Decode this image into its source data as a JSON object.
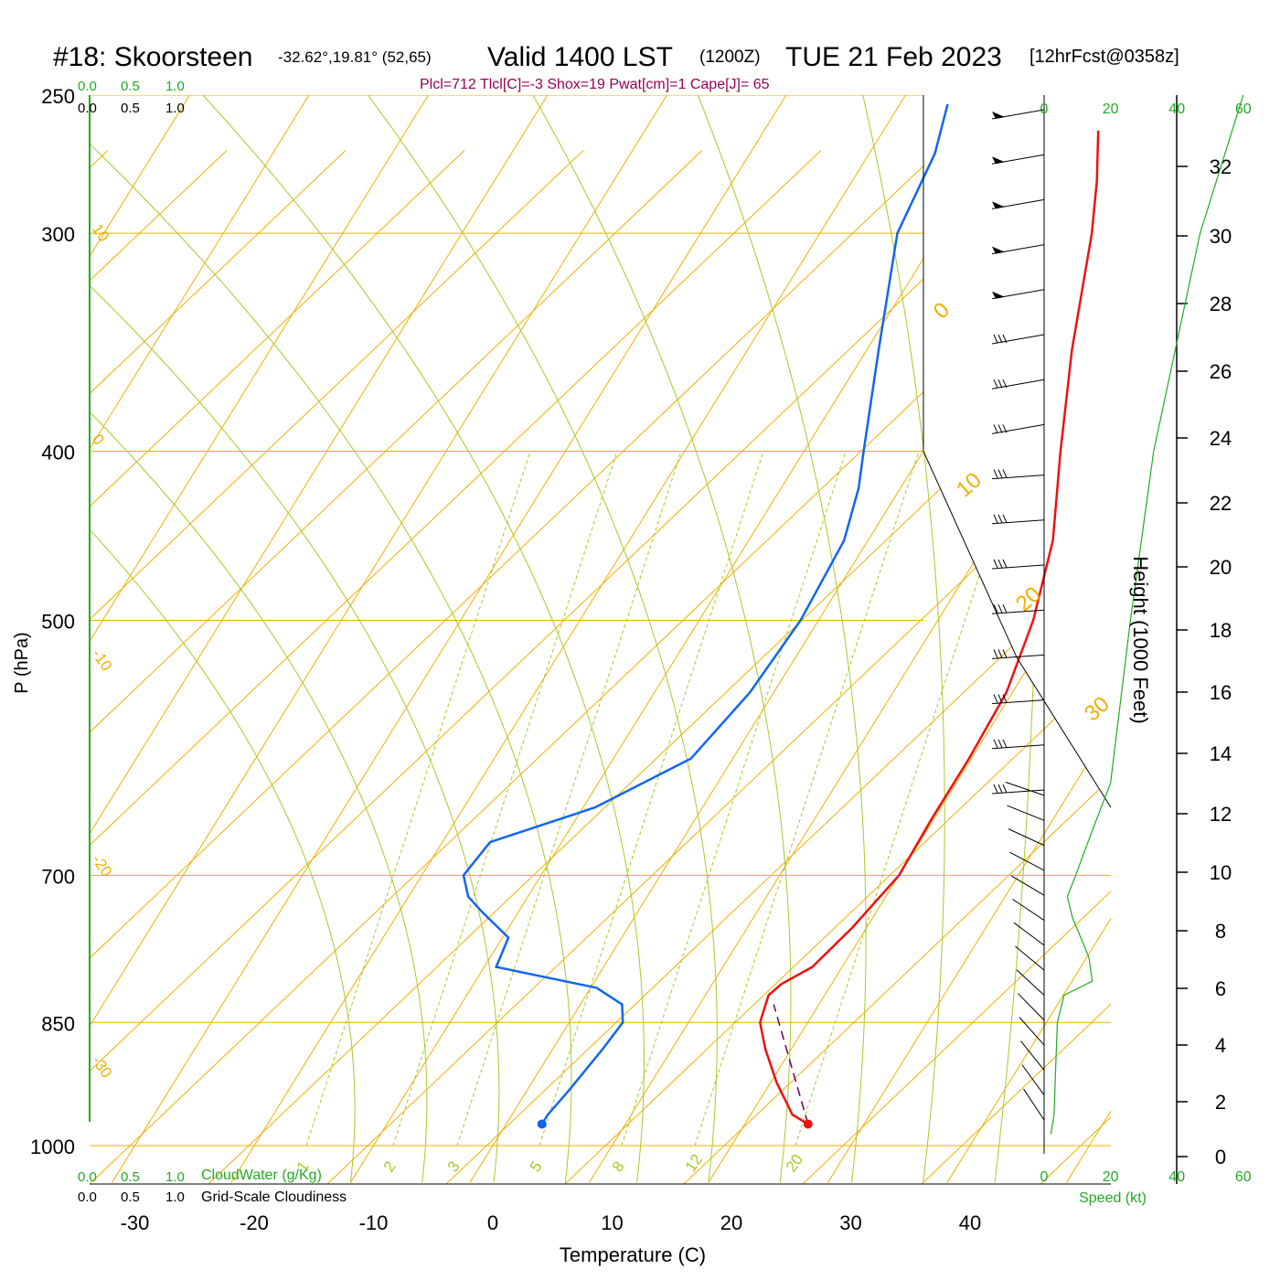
{
  "header": {
    "station": "#18: Skoorsteen",
    "coords": "-32.62°,19.81° (52,65)",
    "valid": "Valid 1400 LST",
    "zulu": "(1200Z)",
    "date": "TUE 21 Feb 2023",
    "fcst": "[12hrFcst@0358z]",
    "indices": "Plcl=712 Tlcl[C]=-3 Shox=19 Pwat[cm]=1 Cape[J]= 65"
  },
  "cloud_scale": {
    "cloudwater_ticks": [
      "0.0",
      "0.5",
      "1.0"
    ],
    "cloudwater_label": "CloudWater (g/Kg)",
    "cloudiness_ticks": [
      "0.0",
      "0.5",
      "1.0"
    ],
    "cloudiness_label": "Grid-Scale Cloudiness"
  },
  "colors": {
    "temperature": "#ee1111",
    "dewpoint": "#1166ee",
    "isobar_isotherm": "#f0b000",
    "dry_adiabat": "#a8c828",
    "mixing_ratio": "#a8c828",
    "parcel": "#660066",
    "wind_speed": "#22aa22",
    "indices": "#990055"
  },
  "chart_data": {
    "type": "line",
    "title": "",
    "xlabel": "Temperature (C)",
    "ylabel": "P (hPa)",
    "xlim": [
      -30,
      40
    ],
    "pressure_range": [
      1000,
      250
    ],
    "y_scale": "log",
    "x_ticks": [
      "-30",
      "-20",
      "-10",
      "0",
      "10",
      "20",
      "30",
      "40"
    ],
    "pressure_levels": [
      250,
      300,
      400,
      500,
      700,
      850,
      1000
    ],
    "pressure_ticks": [
      "250",
      "300",
      "400",
      "500",
      "700",
      "850",
      "1000"
    ],
    "isotherm_labels": [
      "10",
      "0",
      "-10",
      "-20",
      "-30"
    ],
    "isotherm_label_values": [
      10,
      0,
      -10,
      -20,
      -30
    ],
    "isotherm_labels_right": [
      "0",
      "10",
      "20",
      "30"
    ],
    "mixing_ratio_labels": [
      "1",
      "2",
      "3",
      "5",
      "8",
      "12",
      "20"
    ],
    "mixing_ratio_values": [
      1,
      2,
      3,
      5,
      8,
      12,
      20
    ],
    "series": [
      {
        "name": "Temperature",
        "points": [
          {
            "p": 972,
            "t": 25.3
          },
          {
            "p": 960,
            "t": 23.5
          },
          {
            "p": 920,
            "t": 20.5
          },
          {
            "p": 880,
            "t": 17.8
          },
          {
            "p": 850,
            "t": 16.0
          },
          {
            "p": 820,
            "t": 15.3
          },
          {
            "p": 808,
            "t": 15.8
          },
          {
            "p": 790,
            "t": 17.5
          },
          {
            "p": 750,
            "t": 18.8
          },
          {
            "p": 700,
            "t": 20.0
          },
          {
            "p": 650,
            "t": 19.8
          },
          {
            "p": 600,
            "t": 19.8
          },
          {
            "p": 550,
            "t": 19.5
          },
          {
            "p": 500,
            "t": 18.0
          },
          {
            "p": 450,
            "t": 15.5
          },
          {
            "p": 400,
            "t": 11.5
          },
          {
            "p": 350,
            "t": 7.2
          },
          {
            "p": 300,
            "t": 2.8
          },
          {
            "p": 280,
            "t": 0.5
          },
          {
            "p": 262,
            "t": -2.0
          }
        ]
      },
      {
        "name": "Dewpoint",
        "points": [
          {
            "p": 972,
            "t": 3.0
          },
          {
            "p": 960,
            "t": 3.0
          },
          {
            "p": 930,
            "t": 3.5
          },
          {
            "p": 880,
            "t": 4.2
          },
          {
            "p": 850,
            "t": 4.5
          },
          {
            "p": 830,
            "t": 3.5
          },
          {
            "p": 812,
            "t": 0.5
          },
          {
            "p": 790,
            "t": -9.0
          },
          {
            "p": 760,
            "t": -9.5
          },
          {
            "p": 735,
            "t": -13.0
          },
          {
            "p": 720,
            "t": -15.0
          },
          {
            "p": 700,
            "t": -16.5
          },
          {
            "p": 670,
            "t": -16.0
          },
          {
            "p": 640,
            "t": -9.0
          },
          {
            "p": 600,
            "t": -3.5
          },
          {
            "p": 550,
            "t": -2.0
          },
          {
            "p": 500,
            "t": -1.5
          },
          {
            "p": 450,
            "t": -2.0
          },
          {
            "p": 420,
            "t": -3.5
          },
          {
            "p": 400,
            "t": -5.0
          },
          {
            "p": 350,
            "t": -9.0
          },
          {
            "p": 300,
            "t": -13.5
          },
          {
            "p": 270,
            "t": -14.5
          },
          {
            "p": 253,
            "t": -16.0
          }
        ]
      },
      {
        "name": "Parcel",
        "points": [
          {
            "p": 972,
            "t": 25.3
          },
          {
            "p": 830,
            "t": 16.2
          }
        ]
      }
    ],
    "height_axis": {
      "label": "Height (1000 Feet)",
      "ticks": [
        "0",
        "2",
        "4",
        "6",
        "8",
        "10",
        "12",
        "14",
        "16",
        "18",
        "20",
        "22",
        "24",
        "26",
        "28",
        "30",
        "32"
      ]
    },
    "wind_speed_axis": {
      "label": "Speed (kt)",
      "ticks": [
        "0",
        "20",
        "40",
        "60"
      ],
      "profile": [
        {
          "p": 985,
          "v": 2.0
        },
        {
          "p": 960,
          "v": 3.0
        },
        {
          "p": 900,
          "v": 3.5
        },
        {
          "p": 850,
          "v": 4.0
        },
        {
          "p": 820,
          "v": 6.0
        },
        {
          "p": 805,
          "v": 14.5
        },
        {
          "p": 780,
          "v": 13.5
        },
        {
          "p": 740,
          "v": 8.5
        },
        {
          "p": 720,
          "v": 7.0
        },
        {
          "p": 700,
          "v": 9.5
        },
        {
          "p": 660,
          "v": 14.5
        },
        {
          "p": 620,
          "v": 20.0
        },
        {
          "p": 500,
          "v": 26.0
        },
        {
          "p": 400,
          "v": 33.0
        },
        {
          "p": 300,
          "v": 47.0
        },
        {
          "p": 250,
          "v": 60.0
        }
      ]
    },
    "wind_barb_count": 30
  }
}
